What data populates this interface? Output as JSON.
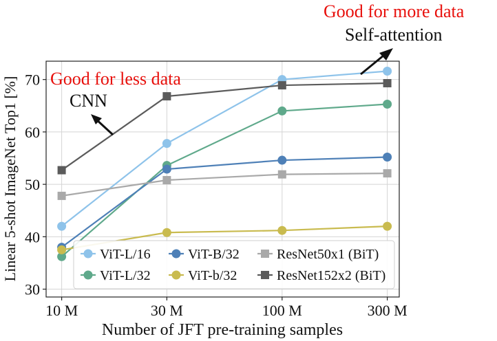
{
  "chart_data": {
    "type": "line",
    "xlabel": "Number of JFT pre-training samples",
    "ylabel": "Linear 5-shot ImageNet Top1 [%]",
    "x": [
      10,
      30,
      100,
      300
    ],
    "xticklabels": [
      "10 M",
      "30 M",
      "100 M",
      "300 M"
    ],
    "xscale": "log",
    "xlim": [
      8.5,
      340
    ],
    "ylim": [
      28.5,
      73.5
    ],
    "yticks": [
      30,
      40,
      50,
      60,
      70
    ],
    "grid": true,
    "legend_position": "lower-right",
    "series": [
      {
        "name": "ViT-L/16",
        "color": "#8ec3ea",
        "marker": "circle",
        "values": [
          42.0,
          57.8,
          70.0,
          71.6
        ]
      },
      {
        "name": "ViT-L/32",
        "color": "#5fa98b",
        "marker": "circle",
        "values": [
          36.2,
          53.6,
          64.0,
          65.3
        ]
      },
      {
        "name": "ViT-B/32",
        "color": "#4e80b7",
        "marker": "circle",
        "values": [
          38.0,
          52.9,
          54.6,
          55.2
        ]
      },
      {
        "name": "ViT-b/32",
        "color": "#c9bb4f",
        "marker": "circle",
        "values": [
          37.5,
          40.8,
          41.2,
          42.0
        ]
      },
      {
        "name": "ResNet50x1 (BiT)",
        "color": "#a9a9a9",
        "marker": "square",
        "values": [
          47.8,
          50.8,
          51.9,
          52.1
        ]
      },
      {
        "name": "ResNet152x2 (BiT)",
        "color": "#5b5b5b",
        "marker": "square",
        "values": [
          52.7,
          66.8,
          68.9,
          69.3
        ]
      }
    ],
    "annotations": {
      "more_data": "Good for more data",
      "self_attention": "Self-attention",
      "less_data": "Good for less data",
      "cnn": "CNN"
    },
    "annotation_color": "#e8100c"
  }
}
